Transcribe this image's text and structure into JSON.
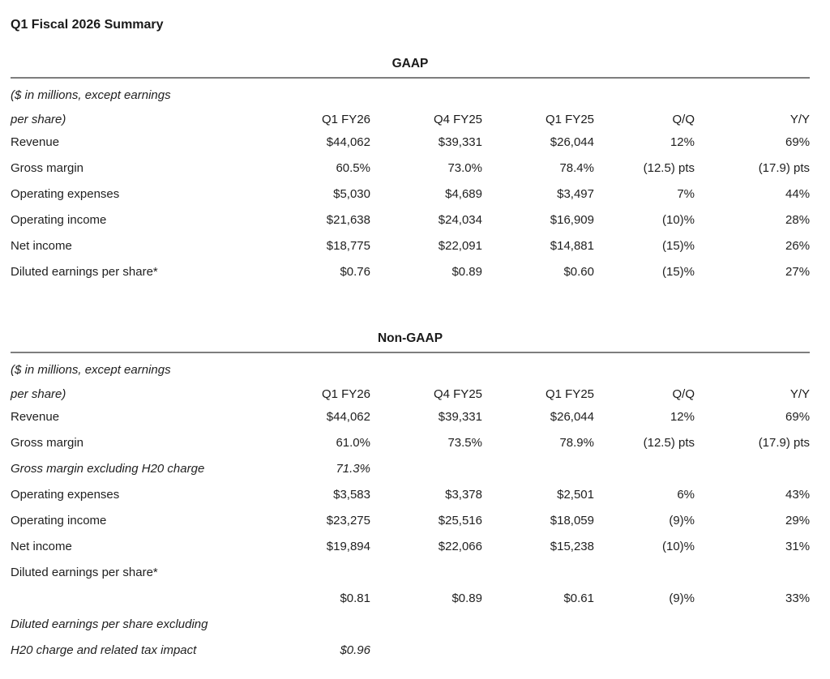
{
  "page": {
    "title": "Q1 Fiscal 2026 Summary"
  },
  "colors": {
    "text": "#1f1f1f",
    "rule": "#7e7e7e",
    "background": "#ffffff"
  },
  "sections": [
    {
      "heading": "GAAP",
      "unit_note_line1": "($ in millions, except earnings",
      "unit_note_line2": "per share)",
      "columns": [
        "Q1 FY26",
        "Q4 FY25",
        "Q1 FY25",
        "Q/Q",
        "Y/Y"
      ],
      "rows": [
        {
          "label": "Revenue",
          "italic": false,
          "values": [
            "$44,062",
            "$39,331",
            "$26,044",
            "12%",
            "69%"
          ]
        },
        {
          "label": "Gross margin",
          "italic": false,
          "values": [
            "60.5%",
            "73.0%",
            "78.4%",
            "(12.5) pts",
            "(17.9) pts"
          ]
        },
        {
          "label": "Operating expenses",
          "italic": false,
          "values": [
            "$5,030",
            "$4,689",
            "$3,497",
            "7%",
            "44%"
          ]
        },
        {
          "label": "Operating income",
          "italic": false,
          "values": [
            "$21,638",
            "$24,034",
            "$16,909",
            "(10)%",
            "28%"
          ]
        },
        {
          "label": "Net income",
          "italic": false,
          "values": [
            "$18,775",
            "$22,091",
            "$14,881",
            "(15)%",
            "26%"
          ]
        },
        {
          "label": "Diluted earnings per share*",
          "italic": false,
          "values": [
            "$0.76",
            "$0.89",
            "$0.60",
            "(15)%",
            "27%"
          ]
        }
      ]
    },
    {
      "heading": "Non-GAAP",
      "unit_note_line1": "($ in millions, except earnings",
      "unit_note_line2": "per share)",
      "columns": [
        "Q1 FY26",
        "Q4 FY25",
        "Q1 FY25",
        "Q/Q",
        "Y/Y"
      ],
      "rows": [
        {
          "label": "Revenue",
          "italic": false,
          "values": [
            "$44,062",
            "$39,331",
            "$26,044",
            "12%",
            "69%"
          ]
        },
        {
          "label": "Gross margin",
          "italic": false,
          "values": [
            "61.0%",
            "73.5%",
            "78.9%",
            "(12.5) pts",
            "(17.9) pts"
          ]
        },
        {
          "label": "Gross margin excluding H20 charge",
          "italic": true,
          "values": [
            "71.3%",
            "",
            "",
            "",
            ""
          ]
        },
        {
          "label": "Operating expenses",
          "italic": false,
          "values": [
            "$3,583",
            "$3,378",
            "$2,501",
            "6%",
            "43%"
          ]
        },
        {
          "label": "Operating income",
          "italic": false,
          "values": [
            "$23,275",
            "$25,516",
            "$18,059",
            "(9)%",
            "29%"
          ]
        },
        {
          "label": "Net income",
          "italic": false,
          "values": [
            "$19,894",
            "$22,066",
            "$15,238",
            "(10)%",
            "31%"
          ]
        },
        {
          "label": "Diluted earnings per share*",
          "italic": false,
          "values": [
            "",
            "",
            "",
            "",
            ""
          ]
        },
        {
          "label": "",
          "italic": false,
          "values": [
            "$0.81",
            "$0.89",
            "$0.61",
            "(9)%",
            "33%"
          ]
        },
        {
          "label": "Diluted earnings per share excluding",
          "italic": true,
          "values": [
            "",
            "",
            "",
            "",
            ""
          ]
        },
        {
          "label": "H20 charge and related tax impact",
          "italic": true,
          "values": [
            "$0.96",
            "",
            "",
            "",
            ""
          ]
        }
      ]
    }
  ]
}
